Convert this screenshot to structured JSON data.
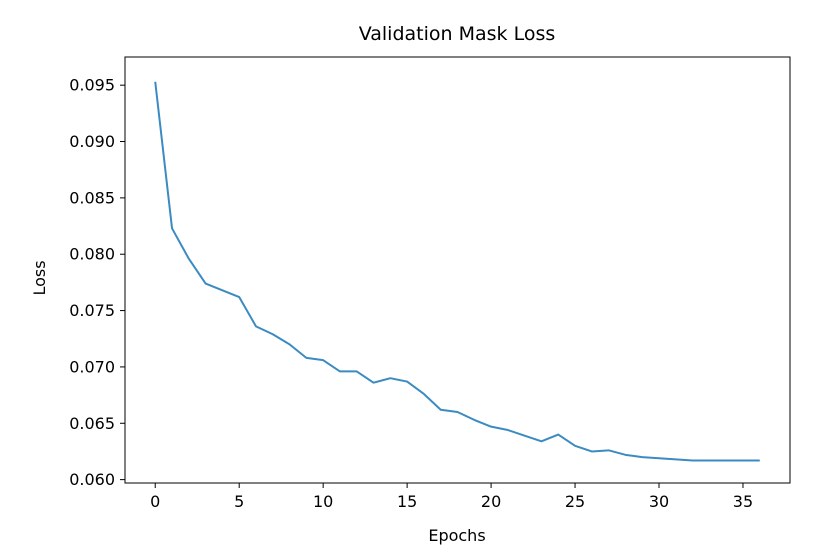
{
  "chart_data": {
    "type": "line",
    "title": "Validation Mask Loss",
    "xlabel": "Epochs",
    "ylabel": "Loss",
    "xlim": [
      -1.8,
      37.8
    ],
    "ylim": [
      0.0597,
      0.0975
    ],
    "xticks": [
      0,
      5,
      10,
      15,
      20,
      25,
      30,
      35
    ],
    "yticks": [
      0.06,
      0.065,
      0.07,
      0.075,
      0.08,
      0.085,
      0.09,
      0.095
    ],
    "ytick_labels": [
      "0.060",
      "0.065",
      "0.070",
      "0.075",
      "0.080",
      "0.085",
      "0.090",
      "0.095"
    ],
    "grid": false,
    "line_color": "#3b8bc2",
    "series": [
      {
        "x": [
          0,
          1,
          2,
          3,
          4,
          5,
          6,
          7,
          8,
          9,
          10,
          11,
          12,
          13,
          14,
          15,
          16,
          17,
          18,
          19,
          20,
          21,
          22,
          23,
          24,
          25,
          26,
          27,
          28,
          29,
          30,
          31,
          32,
          33,
          34,
          35,
          36
        ],
        "values": [
          0.0953,
          0.0823,
          0.0796,
          0.0774,
          0.0768,
          0.0762,
          0.0736,
          0.0729,
          0.072,
          0.0708,
          0.0706,
          0.0696,
          0.0696,
          0.0686,
          0.069,
          0.0687,
          0.0676,
          0.0662,
          0.066,
          0.0653,
          0.0647,
          0.0644,
          0.0639,
          0.0634,
          0.064,
          0.063,
          0.0625,
          0.0626,
          0.0622,
          0.062,
          0.0619,
          0.0618,
          0.0617,
          0.0617,
          0.0617,
          0.0617,
          0.0617
        ]
      }
    ]
  }
}
